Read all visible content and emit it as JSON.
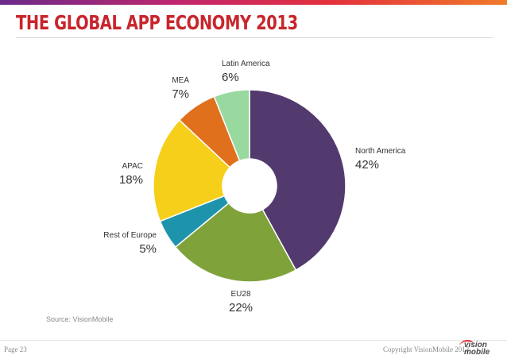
{
  "slide": {
    "title": "THE GLOBAL APP ECONOMY 2013",
    "source": "Source: VisionMobile",
    "page": "Page 23",
    "copyright": "Copyright VisionMobile 2013",
    "logo_line1": "vision",
    "logo_line2": "mobile"
  },
  "chart_data": {
    "type": "pie",
    "variant": "donut",
    "title": "",
    "unit": "%",
    "slices": [
      {
        "label": "North America",
        "value": 42,
        "value_label": "42%",
        "color": "#533a6e"
      },
      {
        "label": "EU28",
        "value": 22,
        "value_label": "22%",
        "color": "#7fa23b"
      },
      {
        "label": "Rest of Europe",
        "value": 5,
        "value_label": "5%",
        "color": "#1d94ab"
      },
      {
        "label": "APAC",
        "value": 18,
        "value_label": "18%",
        "color": "#f6cf1a"
      },
      {
        "label": "MEA",
        "value": 7,
        "value_label": "7%",
        "color": "#e0701c"
      },
      {
        "label": "Latin America",
        "value": 6,
        "value_label": "6%",
        "color": "#98d9a0"
      }
    ]
  }
}
